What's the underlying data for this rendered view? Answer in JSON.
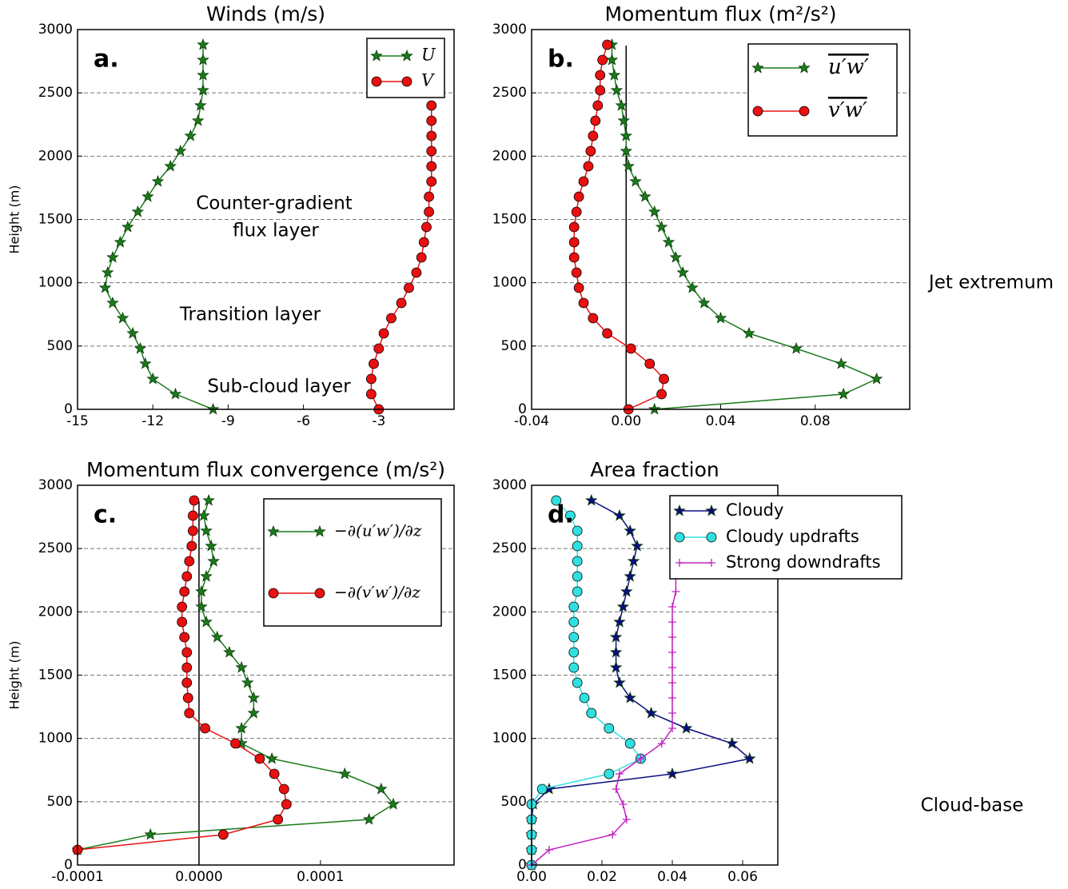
{
  "chart_data": [
    {
      "type": "line",
      "title": "Winds (m/s)",
      "panel_label": "a.",
      "ylabel": "Height (m)",
      "annotations": [
        "Counter-gradient",
        "flux layer",
        "Transition layer",
        "Sub-cloud layer"
      ],
      "y": [
        0,
        120,
        240,
        360,
        480,
        600,
        720,
        840,
        960,
        1080,
        1200,
        1320,
        1440,
        1560,
        1680,
        1800,
        1920,
        2040,
        2160,
        2280,
        2400,
        2520,
        2640,
        2760,
        2880
      ],
      "xlim": [
        -15,
        0
      ],
      "xticks": [
        -15,
        -12,
        -9,
        -6,
        -3
      ],
      "ylim": [
        0,
        3000
      ],
      "yticks": [
        0,
        500,
        1000,
        1500,
        2000,
        2500,
        3000
      ],
      "grid": true,
      "legend": "upper right",
      "series": [
        {
          "name": "U",
          "color": "#1a7a1a",
          "marker": "star",
          "values": [
            -9.6,
            -11.1,
            -12.0,
            -12.3,
            -12.5,
            -12.8,
            -13.2,
            -13.6,
            -13.9,
            -13.8,
            -13.6,
            -13.3,
            -13.0,
            -12.6,
            -12.2,
            -11.8,
            -11.3,
            -10.9,
            -10.5,
            -10.2,
            -10.1,
            -10.0,
            -10.0,
            -10.0,
            -10.0
          ]
        },
        {
          "name": "V",
          "color": "#e81010",
          "marker": "circle",
          "values": [
            -3.0,
            -3.3,
            -3.3,
            -3.2,
            -3.0,
            -2.8,
            -2.5,
            -2.1,
            -1.8,
            -1.5,
            -1.3,
            -1.2,
            -1.1,
            -1.0,
            -1.0,
            -0.9,
            -0.9,
            -0.9,
            -0.9,
            -0.9,
            -0.9,
            null,
            null,
            null,
            null
          ]
        }
      ]
    },
    {
      "type": "line",
      "title": "Momentum flux (m²/s²)",
      "panel_label": "b.",
      "side_label": "Jet extremum",
      "zero_line": true,
      "y": [
        0,
        120,
        240,
        360,
        480,
        600,
        720,
        840,
        960,
        1080,
        1200,
        1320,
        1440,
        1560,
        1680,
        1800,
        1920,
        2040,
        2160,
        2280,
        2400,
        2520,
        2640,
        2760,
        2880
      ],
      "xlim": [
        -0.04,
        0.12
      ],
      "xticks": [
        -0.04,
        {
          "value": 0,
          "label": "0.00"
        },
        0.04,
        0.08
      ],
      "ylim": [
        0,
        3000
      ],
      "yticks": [
        0,
        500,
        1000,
        1500,
        2000,
        2500,
        3000
      ],
      "grid": true,
      "legend": "upper right",
      "series": [
        {
          "name": "u′w′",
          "color": "#1a7a1a",
          "marker": "star",
          "values": [
            0.012,
            0.092,
            0.106,
            0.091,
            0.072,
            0.052,
            0.04,
            0.033,
            0.028,
            0.024,
            0.021,
            0.018,
            0.015,
            0.012,
            0.008,
            0.004,
            0.001,
            0.0,
            0.0,
            -0.001,
            -0.002,
            -0.004,
            -0.005,
            -0.006,
            -0.006
          ]
        },
        {
          "name": "v′w′",
          "color": "#e81010",
          "marker": "circle",
          "values": [
            0.001,
            0.015,
            0.016,
            0.01,
            0.002,
            -0.008,
            -0.014,
            -0.018,
            -0.02,
            -0.021,
            -0.022,
            -0.022,
            -0.022,
            -0.021,
            -0.02,
            -0.018,
            -0.016,
            -0.015,
            -0.014,
            -0.013,
            -0.012,
            -0.011,
            -0.011,
            -0.01,
            -0.008
          ]
        }
      ]
    },
    {
      "type": "line",
      "title": "Momentum flux convergence (m/s²)",
      "panel_label": "c.",
      "ylabel": "Height (m)",
      "zero_line": true,
      "y": [
        0,
        120,
        240,
        360,
        480,
        600,
        720,
        840,
        960,
        1080,
        1200,
        1320,
        1440,
        1560,
        1680,
        1800,
        1920,
        2040,
        2160,
        2280,
        2400,
        2520,
        2640,
        2760,
        2880
      ],
      "xlim": [
        -0.0001,
        0.00021
      ],
      "xticks": [
        -0.0001,
        {
          "value": 0,
          "label": "0.0000"
        },
        0.0001
      ],
      "ylim": [
        0,
        3000
      ],
      "yticks": [
        0,
        500,
        1000,
        1500,
        2000,
        2500,
        3000
      ],
      "grid": true,
      "legend": "upper right",
      "series": [
        {
          "name": "−∂(u′w′)/∂z",
          "color": "#1a7a1a",
          "marker": "star",
          "values": [
            null,
            -0.0001,
            -4e-05,
            0.00014,
            0.00016,
            0.00015,
            0.00012,
            6e-05,
            3.5e-05,
            3.5e-05,
            4.5e-05,
            4.5e-05,
            4e-05,
            3.5e-05,
            2.5e-05,
            1.5e-05,
            6e-06,
            2e-06,
            2e-06,
            6e-06,
            1.2e-05,
            1e-05,
            6e-06,
            4e-06,
            8e-06
          ]
        },
        {
          "name": "−∂(v′w′)/∂z",
          "color": "#e81010",
          "marker": "circle",
          "values": [
            null,
            -0.0001,
            2e-05,
            6.5e-05,
            7.2e-05,
            7e-05,
            6.2e-05,
            5e-05,
            3e-05,
            5e-06,
            -8e-06,
            -9e-06,
            -1e-05,
            -1e-05,
            -1e-05,
            -1.2e-05,
            -1.4e-05,
            -1.4e-05,
            -1.2e-05,
            -1e-05,
            -8e-06,
            -6e-06,
            -5e-06,
            -5e-06,
            -4e-06
          ]
        }
      ]
    },
    {
      "type": "line",
      "title": "Area fraction",
      "panel_label": "d.",
      "side_label": "Cloud-base",
      "y": [
        0,
        120,
        240,
        360,
        480,
        600,
        720,
        840,
        960,
        1080,
        1200,
        1320,
        1440,
        1560,
        1680,
        1800,
        1920,
        2040,
        2160,
        2280,
        2400,
        2520,
        2640,
        2760,
        2880
      ],
      "xlim": [
        0,
        0.07
      ],
      "xticks": [
        {
          "value": 0,
          "label": "0.00"
        },
        0.02,
        0.04,
        0.06
      ],
      "ylim": [
        0,
        3000
      ],
      "yticks": [
        0,
        500,
        1000,
        1500,
        2000,
        2500,
        3000
      ],
      "grid": true,
      "legend": "upper right",
      "series": [
        {
          "name": "Cloudy",
          "color": "#0c0c80",
          "marker": "star",
          "values": [
            0,
            0,
            0,
            0,
            0.0005,
            0.005,
            0.04,
            0.062,
            0.057,
            0.044,
            0.034,
            0.028,
            0.025,
            0.024,
            0.024,
            0.024,
            0.025,
            0.026,
            0.027,
            0.028,
            0.029,
            0.03,
            0.028,
            0.025,
            0.017
          ]
        },
        {
          "name": "Cloudy updrafts",
          "color": "#30e0e0",
          "marker": "circle",
          "values": [
            0,
            0,
            0,
            0,
            0,
            0.003,
            0.022,
            0.031,
            0.028,
            0.022,
            0.017,
            0.015,
            0.013,
            0.012,
            0.012,
            0.012,
            0.012,
            0.012,
            0.013,
            0.013,
            0.013,
            0.013,
            0.013,
            0.011,
            0.007
          ]
        },
        {
          "name": "Strong downdrafts",
          "color": "#c020c0",
          "marker": "plus",
          "values": [
            0,
            0.005,
            0.023,
            0.027,
            0.026,
            0.024,
            0.025,
            0.031,
            0.037,
            0.04,
            0.04,
            0.04,
            0.04,
            0.04,
            0.04,
            0.04,
            0.04,
            0.04,
            0.041,
            0.041,
            null,
            null,
            null,
            null,
            null
          ]
        }
      ]
    }
  ]
}
